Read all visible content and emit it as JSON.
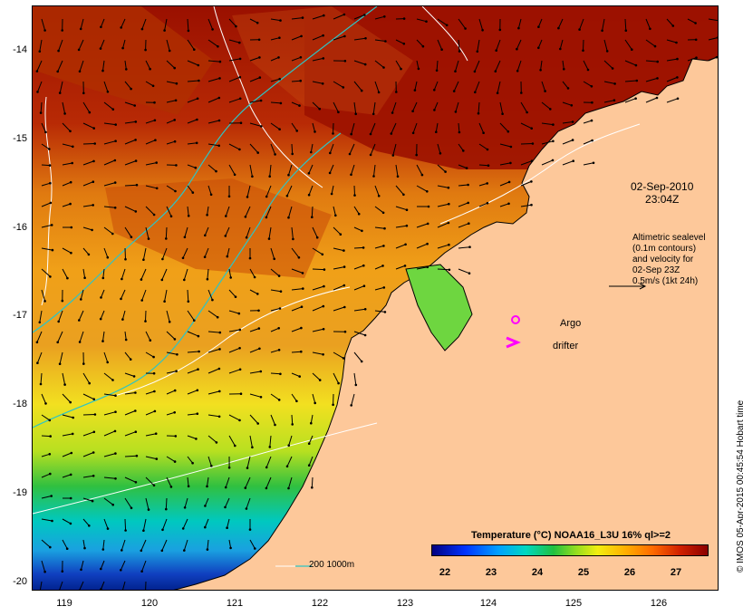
{
  "map": {
    "date": "02-Sep-2010",
    "time": "23:04Z",
    "legend_lines": [
      "Altimetric sealevel",
      "(0.1m contours)",
      "and velocity for",
      "02-Sep 23Z",
      "0.5m/s (1kt 24h)"
    ],
    "argo_label": "Argo",
    "drifter_label": "drifter",
    "bathymetry_label": "200  1000m",
    "credit": "© IMOS 05-Apr-2015 00:45:54 Hobart time",
    "y_ticks": [
      "-14",
      "-15",
      "-16",
      "-17",
      "-18",
      "-19",
      "-20"
    ],
    "x_ticks": [
      "119",
      "120",
      "121",
      "122",
      "123",
      "124",
      "125",
      "126"
    ],
    "colors": {
      "land": "#fdc89a",
      "warm": "#8b0000",
      "cool": "#000080",
      "bathymetry": "#2ec4c4",
      "argo": "#ff00ff"
    }
  },
  "colorbar": {
    "title": "Temperature (°C) NOAA16_L3U 16% ql>=2",
    "ticks": [
      "22",
      "23",
      "24",
      "25",
      "26",
      "27"
    ],
    "range": [
      21.6,
      27.6
    ]
  }
}
